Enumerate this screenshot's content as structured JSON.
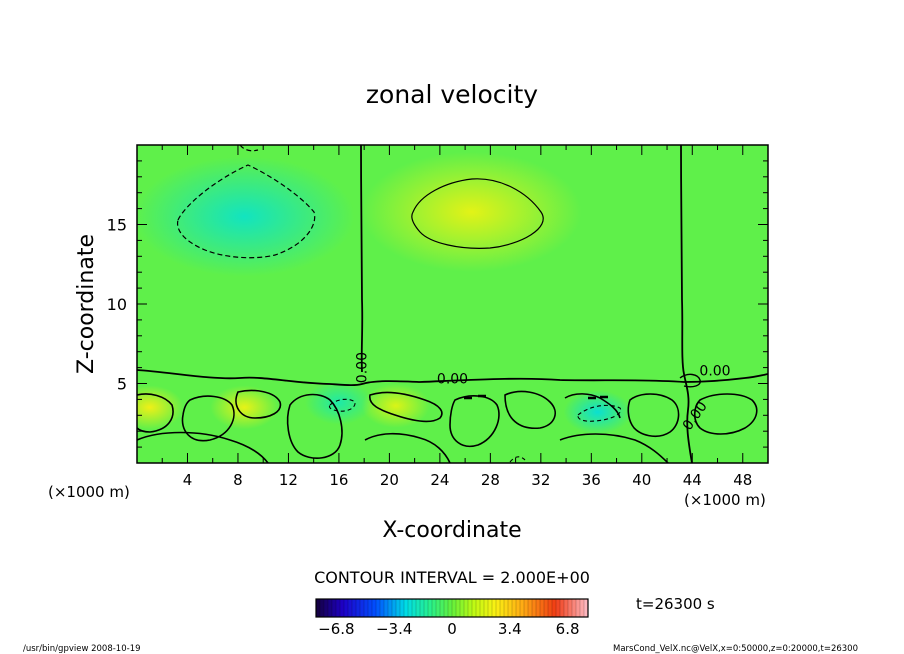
{
  "chart_data": {
    "type": "heatmap",
    "title": "zonal velocity",
    "xlabel": "X-coordinate",
    "ylabel": "Z-coordinate",
    "x_unit_label": "(×1000 m)",
    "y_unit_label": "(×1000 m)",
    "xlim": [
      0,
      50
    ],
    "ylim": [
      0,
      20
    ],
    "x_ticks": [
      4,
      8,
      12,
      16,
      20,
      24,
      28,
      32,
      36,
      40,
      44,
      48
    ],
    "y_ticks": [
      5,
      10,
      15
    ],
    "contour_interval_label": "CONTOUR INTERVAL = 2.000E+00",
    "contour_labels": [
      {
        "text": "0.00",
        "x": 18.2,
        "z": 6.0,
        "rotate": -90
      },
      {
        "text": "0.00",
        "x": 25.0,
        "z": 5.0,
        "rotate": 0
      },
      {
        "text": "0.00",
        "x": 45.8,
        "z": 5.5,
        "rotate": 0
      },
      {
        "text": "0.00",
        "x": 44.5,
        "z": 2.8,
        "rotate": -55
      }
    ],
    "time_label": "t=26300 s",
    "colorbar": {
      "min": -8.0,
      "max": 8.0,
      "tick_values": [
        -6.8,
        -3.4,
        0,
        3.4,
        6.8
      ],
      "tick_labels": [
        "−6.8",
        "−3.4",
        "0",
        "3.4",
        "6.8"
      ]
    },
    "features": [
      {
        "kind": "low",
        "x": 8.5,
        "z": 15.5,
        "value": -2.2
      },
      {
        "kind": "high",
        "x": 26.5,
        "z": 15.8,
        "value": 2.2
      },
      {
        "kind": "low",
        "x": 36.5,
        "z": 3.2,
        "value": -2.5
      },
      {
        "kind": "low",
        "x": 16.0,
        "z": 3.8,
        "value": -1.8
      },
      {
        "kind": "high",
        "x": 1.0,
        "z": 3.5,
        "value": 2.5
      },
      {
        "kind": "high",
        "x": 8.5,
        "z": 3.5,
        "value": 2.3
      },
      {
        "kind": "high",
        "x": 20.5,
        "z": 3.6,
        "value": 2.0
      }
    ]
  },
  "footer": {
    "left": "/usr/bin/gpview   2008-10-19",
    "right": "MarsCond_VelX.nc@VelX,x=0:50000,z=0:20000,t=26300"
  }
}
